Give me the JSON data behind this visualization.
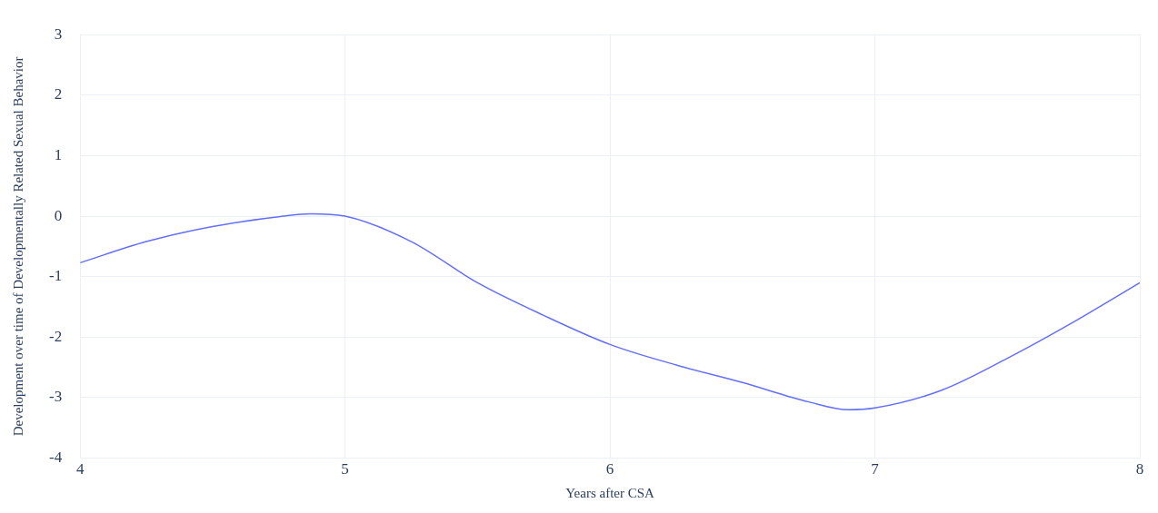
{
  "chart_data": {
    "type": "line",
    "xlabel": "Years after CSA",
    "ylabel": "Development over time of Developmentally Related Sexual Behavior",
    "x": [
      4,
      4.25,
      4.5,
      4.75,
      4.87,
      5,
      5.25,
      5.5,
      5.75,
      6,
      6.25,
      6.5,
      6.75,
      6.9,
      7,
      7.25,
      7.5,
      7.75,
      8
    ],
    "series": [
      {
        "color": "#636efa",
        "values": [
          -0.77,
          -0.42,
          -0.17,
          -0.01,
          0.04,
          0.0,
          -0.42,
          -1.1,
          -1.64,
          -2.12,
          -2.46,
          -2.75,
          -3.07,
          -3.2,
          -3.17,
          -2.88,
          -2.35,
          -1.75,
          -1.1
        ]
      }
    ],
    "xlim": [
      4,
      8
    ],
    "xticks": [
      4,
      5,
      6,
      7,
      8
    ],
    "ylim": [
      -4,
      3
    ],
    "yticks": [
      -4,
      -3,
      -2,
      -1,
      0,
      1,
      2,
      3
    ],
    "grid": true,
    "legend": false,
    "marker": "none",
    "line_style": "solid"
  }
}
